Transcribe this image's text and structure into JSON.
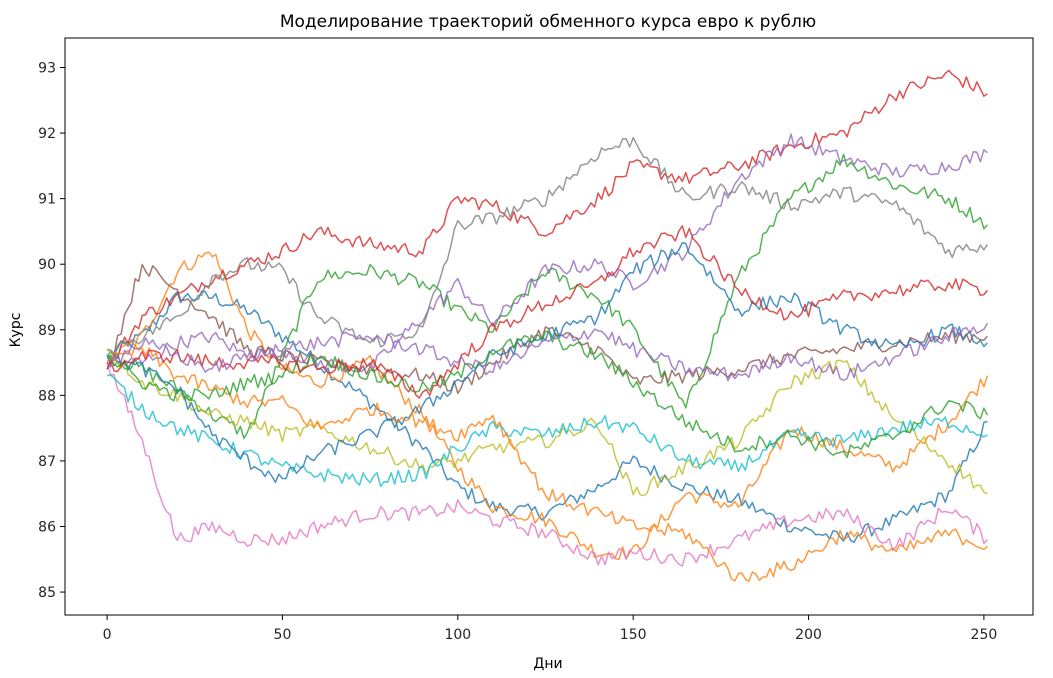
{
  "chart_data": {
    "type": "line",
    "title": "Моделирование траекторий обменного курса евро к рублю",
    "xlabel": "Дни",
    "ylabel": "Курс",
    "xlim": [
      -12,
      264
    ],
    "ylim": [
      84.65,
      93.45
    ],
    "xticks": [
      0,
      50,
      100,
      150,
      200,
      250
    ],
    "yticks": [
      85,
      86,
      87,
      88,
      89,
      90,
      91,
      92,
      93
    ],
    "grid": false,
    "legend": "none",
    "series_colors": [
      "#1f77b4",
      "#ff7f0e",
      "#2ca02c",
      "#d62728",
      "#9467bd",
      "#8c564b",
      "#e377c2",
      "#7f7f7f",
      "#bcbd22",
      "#17becf"
    ],
    "series": [
      {
        "x": [
          0,
          10,
          20,
          30,
          40,
          50,
          60,
          75,
          90,
          100,
          110,
          125,
          140,
          150,
          165,
          180,
          195,
          210,
          225,
          240,
          251
        ],
        "values": [
          88.6,
          88.9,
          89.5,
          89.5,
          89.3,
          88.9,
          88.5,
          87.9,
          87.2,
          86.6,
          86.3,
          86.2,
          86.6,
          87.0,
          86.6,
          86.4,
          86.0,
          85.8,
          86.1,
          86.5,
          87.6
        ]
      },
      {
        "x": [
          0,
          10,
          20,
          30,
          40,
          50,
          60,
          75,
          90,
          100,
          110,
          125,
          140,
          150,
          165,
          180,
          195,
          210,
          225,
          240,
          251
        ],
        "values": [
          88.5,
          88.9,
          89.9,
          90.2,
          89.0,
          88.4,
          88.2,
          88.5,
          87.7,
          86.9,
          86.3,
          86.1,
          85.6,
          85.6,
          86.5,
          86.3,
          87.5,
          87.2,
          86.9,
          87.6,
          88.3
        ]
      },
      {
        "x": [
          0,
          10,
          20,
          30,
          40,
          50,
          60,
          75,
          90,
          100,
          110,
          125,
          140,
          150,
          165,
          180,
          195,
          210,
          225,
          240,
          251
        ],
        "values": [
          88.6,
          88.4,
          88.1,
          87.7,
          87.4,
          88.6,
          89.8,
          89.9,
          89.7,
          89.3,
          89.0,
          89.9,
          89.5,
          89.0,
          87.8,
          89.8,
          91.0,
          91.6,
          91.2,
          91.0,
          90.6
        ]
      },
      {
        "x": [
          0,
          10,
          20,
          30,
          40,
          50,
          60,
          75,
          90,
          100,
          110,
          125,
          140,
          150,
          165,
          180,
          195,
          210,
          225,
          240,
          251
        ],
        "values": [
          88.4,
          89.2,
          89.5,
          89.8,
          90.0,
          90.2,
          90.5,
          90.3,
          90.2,
          91.0,
          90.9,
          90.5,
          91.0,
          91.5,
          91.3,
          91.5,
          91.8,
          92.0,
          92.6,
          92.9,
          92.6
        ]
      },
      {
        "x": [
          0,
          10,
          20,
          30,
          40,
          50,
          60,
          75,
          90,
          100,
          110,
          125,
          140,
          150,
          165,
          180,
          195,
          210,
          225,
          240,
          251
        ],
        "values": [
          88.5,
          88.5,
          88.8,
          88.9,
          88.6,
          88.7,
          88.5,
          88.4,
          89.2,
          89.7,
          89.1,
          89.9,
          90.0,
          89.7,
          90.2,
          91.3,
          91.9,
          91.6,
          91.4,
          91.5,
          91.7
        ]
      },
      {
        "x": [
          0,
          10,
          20,
          30,
          40,
          50,
          60,
          75,
          90,
          100,
          110,
          125,
          140,
          150,
          165,
          180,
          195,
          210,
          225,
          240,
          251
        ],
        "values": [
          88.4,
          90.0,
          89.6,
          89.2,
          88.7,
          88.6,
          88.5,
          88.4,
          88.3,
          88.1,
          88.5,
          89.0,
          88.7,
          88.2,
          88.3,
          88.4,
          88.6,
          88.7,
          88.8,
          88.9,
          88.9
        ]
      },
      {
        "x": [
          0,
          10,
          20,
          30,
          40,
          50,
          60,
          75,
          90,
          100,
          110,
          125,
          140,
          150,
          165,
          180,
          195,
          210,
          225,
          240,
          251
        ],
        "values": [
          88.5,
          87.3,
          85.8,
          86.0,
          85.8,
          85.8,
          86.0,
          86.2,
          86.2,
          86.3,
          86.1,
          85.9,
          85.5,
          85.6,
          85.5,
          85.8,
          86.1,
          86.2,
          85.7,
          86.3,
          85.8
        ]
      },
      {
        "x": [
          0,
          10,
          20,
          30,
          40,
          50,
          60,
          75,
          90,
          100,
          110,
          125,
          140,
          150,
          165,
          180,
          195,
          210,
          225,
          240,
          251
        ],
        "values": [
          88.7,
          88.9,
          89.2,
          89.8,
          90.0,
          89.9,
          89.2,
          88.8,
          89.0,
          90.6,
          90.7,
          91.0,
          91.7,
          91.9,
          91.0,
          91.2,
          90.9,
          91.1,
          90.9,
          90.2,
          90.3
        ]
      },
      {
        "x": [
          0,
          10,
          20,
          30,
          40,
          50,
          60,
          75,
          90,
          100,
          110,
          125,
          140,
          150,
          165,
          180,
          195,
          210,
          225,
          240,
          251
        ],
        "values": [
          88.7,
          88.2,
          88.0,
          87.7,
          87.6,
          87.4,
          87.5,
          87.2,
          86.9,
          87.0,
          87.2,
          87.3,
          87.6,
          86.5,
          86.9,
          87.3,
          88.2,
          88.5,
          87.6,
          87.0,
          86.5
        ]
      },
      {
        "x": [
          0,
          10,
          20,
          30,
          40,
          50,
          60,
          75,
          90,
          100,
          110,
          125,
          140,
          150,
          165,
          180,
          195,
          210,
          225,
          240,
          251
        ],
        "values": [
          88.3,
          87.8,
          87.5,
          87.3,
          87.1,
          86.9,
          86.8,
          86.7,
          86.8,
          87.2,
          87.5,
          87.4,
          87.6,
          87.5,
          87.0,
          86.9,
          87.4,
          87.3,
          87.5,
          87.6,
          87.4
        ]
      },
      {
        "x": [
          0,
          10,
          20,
          30,
          40,
          50,
          60,
          75,
          90,
          100,
          110,
          125,
          140,
          150,
          165,
          180,
          195,
          210,
          225,
          240,
          251
        ],
        "values": [
          88.6,
          88.4,
          88.1,
          87.4,
          87.0,
          86.7,
          87.1,
          87.4,
          87.8,
          88.2,
          88.6,
          88.9,
          89.2,
          89.9,
          90.3,
          89.3,
          89.5,
          89.0,
          88.7,
          89.0,
          88.8
        ]
      },
      {
        "x": [
          0,
          10,
          20,
          30,
          40,
          50,
          60,
          75,
          90,
          100,
          110,
          125,
          140,
          150,
          165,
          180,
          195,
          210,
          225,
          240,
          251
        ],
        "values": [
          88.5,
          88.7,
          88.3,
          88.1,
          87.9,
          87.9,
          87.5,
          87.8,
          87.6,
          87.4,
          87.7,
          86.5,
          86.2,
          86.0,
          85.9,
          85.2,
          85.4,
          85.9,
          85.6,
          85.9,
          85.7
        ]
      },
      {
        "x": [
          0,
          10,
          20,
          30,
          40,
          50,
          60,
          75,
          90,
          100,
          110,
          125,
          140,
          150,
          165,
          180,
          195,
          210,
          225,
          240,
          251
        ],
        "values": [
          88.6,
          88.2,
          88.0,
          88.0,
          88.2,
          88.3,
          88.6,
          88.3,
          88.1,
          88.3,
          88.7,
          88.9,
          88.6,
          88.2,
          87.6,
          87.2,
          87.4,
          87.1,
          87.4,
          87.9,
          87.7
        ]
      },
      {
        "x": [
          0,
          10,
          20,
          30,
          40,
          50,
          60,
          75,
          90,
          100,
          110,
          125,
          140,
          150,
          165,
          180,
          195,
          210,
          225,
          240,
          251
        ],
        "values": [
          88.4,
          88.6,
          88.6,
          88.5,
          88.5,
          88.5,
          88.4,
          88.5,
          88.0,
          88.5,
          89.0,
          89.4,
          89.7,
          90.2,
          90.5,
          89.6,
          89.2,
          89.5,
          89.6,
          89.7,
          89.6
        ]
      },
      {
        "x": [
          0,
          10,
          20,
          30,
          40,
          50,
          60,
          75,
          90,
          100,
          110,
          125,
          140,
          150,
          165,
          180,
          195,
          210,
          225,
          240,
          251
        ],
        "values": [
          88.5,
          88.8,
          88.6,
          88.4,
          88.6,
          88.7,
          88.8,
          88.9,
          88.7,
          88.5,
          88.4,
          88.8,
          89.0,
          88.7,
          88.4,
          88.3,
          88.6,
          88.3,
          88.6,
          88.9,
          89.1
        ]
      }
    ]
  }
}
